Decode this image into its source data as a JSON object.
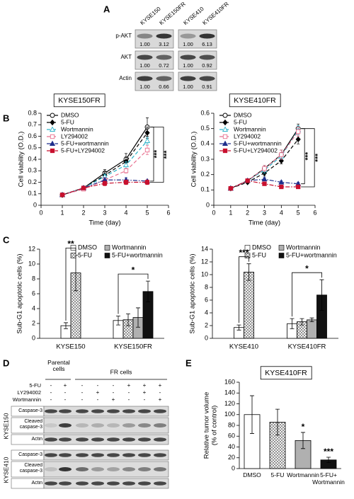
{
  "panel_labels": [
    "A",
    "B",
    "C",
    "D",
    "E"
  ],
  "blot_a": {
    "lanes": [
      "KYSE150",
      "KYSE150FR",
      "KYSE410",
      "KYSE410FR"
    ],
    "rows": [
      {
        "name": "p-AKT",
        "values": [
          "1.00",
          "3.12",
          "1.00",
          "6.13"
        ]
      },
      {
        "name": "AKT",
        "values": [
          "1.00",
          "0.72",
          "1.00",
          "0.92"
        ]
      },
      {
        "name": "Actin",
        "values": [
          "1.00",
          "0.66",
          "1.00",
          "0.91"
        ]
      }
    ]
  },
  "blot_d": {
    "groups": [
      "Parental cells",
      "FR cells"
    ],
    "treatments": [
      {
        "name": "5-FU",
        "signs": [
          "-",
          "+",
          "-",
          "-",
          "-",
          "+",
          "+",
          "+"
        ]
      },
      {
        "name": "LY294002",
        "signs": [
          "-",
          "-",
          "-",
          "+",
          "-",
          "-",
          "+",
          "-"
        ]
      },
      {
        "name": "Wortmannin",
        "signs": [
          "-",
          "-",
          "-",
          "-",
          "+",
          "-",
          "-",
          "+"
        ]
      }
    ],
    "cell_lines": [
      {
        "name": "KYSE150",
        "rows": [
          "Caspase-3",
          "Cleaved caspase-3",
          "Actin"
        ]
      },
      {
        "name": "KYSE410",
        "rows": [
          "Caspase-3",
          "Cleaved caspase-3",
          "Actin"
        ]
      }
    ]
  },
  "chart_data": [
    {
      "type": "line",
      "title": "KYSE150FR",
      "x_label": "Time (day)",
      "y_label": "Cell viability (O.D.)",
      "x": [
        1,
        2,
        3,
        4,
        5
      ],
      "xlim": [
        0,
        6
      ],
      "xticks": [
        0,
        1,
        2,
        3,
        4,
        5,
        6
      ],
      "ylim": [
        0,
        0.8
      ],
      "yticks": [
        0,
        0.1,
        0.2,
        0.3,
        0.4,
        0.5,
        0.6,
        0.7,
        0.8
      ],
      "legend": "upper left",
      "annotations": [
        "***",
        "***"
      ],
      "series": [
        {
          "name": "DMSO",
          "color": "#000000",
          "marker": "circle",
          "filled": false,
          "dash": "solid",
          "values": [
            0.09,
            0.15,
            0.28,
            0.4,
            0.68
          ],
          "errors": [
            0.005,
            0.01,
            0.03,
            0.05,
            0.08
          ]
        },
        {
          "name": "5-FU",
          "color": "#000000",
          "marker": "diamond",
          "filled": true,
          "dash": "dashed",
          "values": [
            0.09,
            0.15,
            0.26,
            0.38,
            0.63
          ],
          "errors": [
            0.005,
            0.01,
            0.03,
            0.04,
            0.05
          ]
        },
        {
          "name": "Wortmannin",
          "color": "#2fb3c9",
          "marker": "triangle",
          "filled": false,
          "dash": "dashed",
          "values": [
            0.09,
            0.15,
            0.25,
            0.35,
            0.56
          ],
          "errors": [
            0.005,
            0.01,
            0.02,
            0.03,
            0.03
          ]
        },
        {
          "name": "LY294002",
          "color": "#e8708f",
          "marker": "square",
          "filled": false,
          "dash": "dashed",
          "values": [
            0.09,
            0.14,
            0.22,
            0.3,
            0.48
          ],
          "errors": [
            0.005,
            0.01,
            0.02,
            0.02,
            0.04
          ]
        },
        {
          "name": "5-FU+wortmannin",
          "color": "#1f2e8c",
          "marker": "triangle",
          "filled": true,
          "dash": "dashdot",
          "values": [
            0.09,
            0.15,
            0.22,
            0.22,
            0.21
          ],
          "errors": [
            0.005,
            0.01,
            0.02,
            0.02,
            0.01
          ]
        },
        {
          "name": "5-FU+LY294002",
          "color": "#c8102e",
          "marker": "square",
          "filled": true,
          "dash": "dashdot",
          "values": [
            0.09,
            0.15,
            0.19,
            0.2,
            0.2
          ],
          "errors": [
            0.005,
            0.01,
            0.02,
            0.02,
            0.02
          ]
        }
      ]
    },
    {
      "type": "line",
      "title": "KYSE410FR",
      "x_label": "Time (day)",
      "y_label": "Cell viability (O.D.)",
      "x": [
        1,
        2,
        3,
        4,
        5
      ],
      "xlim": [
        0,
        6
      ],
      "xticks": [
        0,
        1,
        2,
        3,
        4,
        5,
        6
      ],
      "ylim": [
        0,
        0.6
      ],
      "yticks": [
        0,
        0.1,
        0.2,
        0.3,
        0.4,
        0.5,
        0.6
      ],
      "legend": "upper left",
      "annotations": [
        "***",
        "***"
      ],
      "series": [
        {
          "name": "DMSO",
          "color": "#000000",
          "marker": "circle",
          "filled": false,
          "dash": "solid",
          "values": [
            0.11,
            0.16,
            0.24,
            0.33,
            0.5
          ],
          "errors": [
            0.005,
            0.01,
            0.02,
            0.03,
            0.03
          ]
        },
        {
          "name": "5-FU",
          "color": "#000000",
          "marker": "diamond",
          "filled": true,
          "dash": "dashed",
          "values": [
            0.11,
            0.15,
            0.21,
            0.29,
            0.43
          ],
          "errors": [
            0.005,
            0.01,
            0.02,
            0.02,
            0.03
          ]
        },
        {
          "name": "Wortmannin",
          "color": "#2fb3c9",
          "marker": "triangle",
          "filled": false,
          "dash": "dashed",
          "values": [
            0.11,
            0.16,
            0.23,
            0.32,
            0.49
          ],
          "errors": [
            0.005,
            0.01,
            0.02,
            0.02,
            0.03
          ]
        },
        {
          "name": "LY294002",
          "color": "#e8708f",
          "marker": "square",
          "filled": false,
          "dash": "dashed",
          "values": [
            0.11,
            0.16,
            0.24,
            0.33,
            0.48
          ],
          "errors": [
            0.005,
            0.01,
            0.02,
            0.03,
            0.03
          ]
        },
        {
          "name": "5-FU+wortmannin",
          "color": "#1f2e8c",
          "marker": "triangle",
          "filled": true,
          "dash": "dashdot",
          "values": [
            0.11,
            0.16,
            0.17,
            0.15,
            0.14
          ],
          "errors": [
            0.005,
            0.01,
            0.01,
            0.01,
            0.01
          ]
        },
        {
          "name": "5-FU+LY294002",
          "color": "#c8102e",
          "marker": "square",
          "filled": true,
          "dash": "dashdot",
          "values": [
            0.11,
            0.16,
            0.14,
            0.12,
            0.12
          ],
          "errors": [
            0.005,
            0.01,
            0.01,
            0.01,
            0.01
          ]
        }
      ]
    },
    {
      "type": "bar",
      "y_label": "Sub-G1 apoptotic cells (%)",
      "categories": [
        "KYSE150",
        "KYSE150FR"
      ],
      "ylim": [
        0,
        12
      ],
      "yticks": [
        0,
        2,
        4,
        6,
        8,
        10,
        12
      ],
      "legend": "upper right",
      "annotations": [
        "**",
        "*"
      ],
      "series": [
        {
          "name": "DMSO",
          "color": "#ffffff",
          "hatch": false,
          "values": [
            1.7,
            2.4
          ],
          "errors": [
            0.4,
            0.6
          ]
        },
        {
          "name": "5-FU",
          "color": "#ffffff",
          "hatch": true,
          "values": [
            8.8,
            2.5
          ],
          "errors": [
            2.4,
            0.8
          ]
        },
        {
          "name": "Wortmannin",
          "color": "#b0b0b0",
          "hatch": false,
          "values": [
            null,
            2.8
          ],
          "errors": [
            null,
            1.3
          ]
        },
        {
          "name": "5-FU+wortmannin",
          "color": "#111111",
          "hatch": false,
          "values": [
            null,
            6.3
          ],
          "errors": [
            null,
            1.4
          ]
        }
      ]
    },
    {
      "type": "bar",
      "y_label": "Sub-G1 apoptotic cells (%)",
      "categories": [
        "KYSE410",
        "KYSE410FR"
      ],
      "ylim": [
        0,
        14
      ],
      "yticks": [
        0,
        2,
        4,
        6,
        8,
        10,
        12,
        14
      ],
      "legend": "upper right",
      "annotations": [
        "***",
        "*"
      ],
      "series": [
        {
          "name": "DMSO",
          "color": "#ffffff",
          "hatch": false,
          "values": [
            1.7,
            2.3
          ],
          "errors": [
            0.4,
            0.8
          ]
        },
        {
          "name": "5-FU",
          "color": "#ffffff",
          "hatch": true,
          "values": [
            10.4,
            2.6
          ],
          "errors": [
            1.3,
            0.5
          ]
        },
        {
          "name": "Wortmannin",
          "color": "#b0b0b0",
          "hatch": false,
          "values": [
            null,
            2.9
          ],
          "errors": [
            null,
            0.3
          ]
        },
        {
          "name": "5-FU+wortmannin",
          "color": "#111111",
          "hatch": false,
          "values": [
            null,
            6.8
          ],
          "errors": [
            null,
            2.4
          ]
        }
      ]
    },
    {
      "type": "bar",
      "title": "KYSE410FR",
      "y_label": [
        "Relative tumor volume",
        "(% of control)"
      ],
      "categories": [
        "DMSO",
        "5-FU",
        "Wortmannin",
        "5-FU+ Wortmannin"
      ],
      "values": [
        100,
        86,
        52,
        16
      ],
      "errors": [
        35,
        24,
        15,
        5
      ],
      "colors": [
        "#ffffff",
        "#ffffff",
        "#b0b0b0",
        "#111111"
      ],
      "hatch": [
        false,
        true,
        false,
        false
      ],
      "ylim": [
        0,
        160
      ],
      "yticks": [
        0,
        20,
        40,
        60,
        80,
        100,
        120,
        140,
        160
      ],
      "annotations": [
        "*",
        "***"
      ]
    }
  ]
}
